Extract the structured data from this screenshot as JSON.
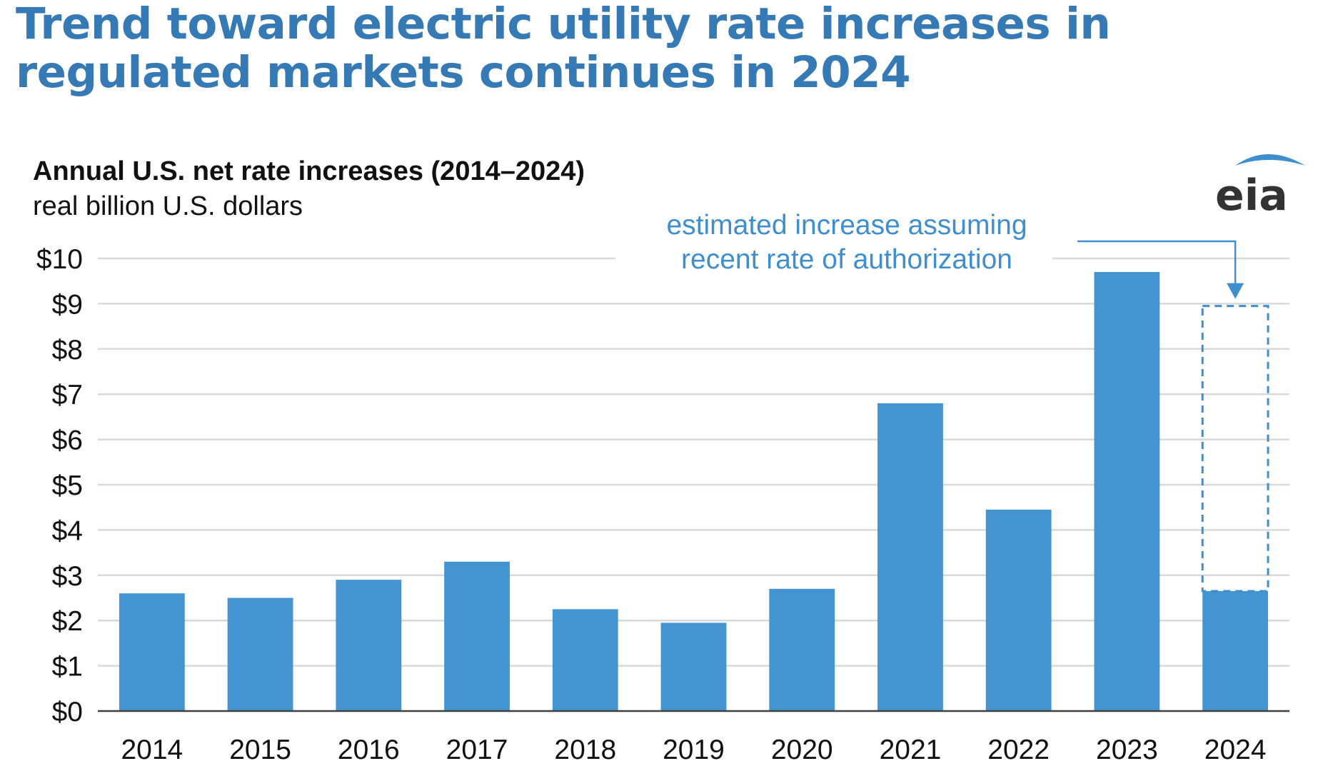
{
  "headline": "Trend toward electric utility rate increases in regulated markets continues in 2024",
  "logo_text": "eia",
  "colors": {
    "headline": "#3579b5",
    "bar": "#4394d1",
    "grid": "#d9d9d9",
    "axis": "#404040",
    "annotation": "#3f8fcf"
  },
  "chart_data": {
    "type": "bar",
    "title": "Annual U.S. net rate increases (2014–2024)",
    "subtitle": "real billion U.S. dollars",
    "xlabel": "",
    "ylabel": "",
    "ylim": [
      0,
      10
    ],
    "grid": true,
    "legend": "none",
    "y_ticks": [
      {
        "value": 0,
        "label": "$0"
      },
      {
        "value": 1,
        "label": "$1"
      },
      {
        "value": 2,
        "label": "$2"
      },
      {
        "value": 3,
        "label": "$3"
      },
      {
        "value": 4,
        "label": "$4"
      },
      {
        "value": 5,
        "label": "$5"
      },
      {
        "value": 6,
        "label": "$6"
      },
      {
        "value": 7,
        "label": "$7"
      },
      {
        "value": 8,
        "label": "$8"
      },
      {
        "value": 9,
        "label": "$9"
      },
      {
        "value": 10,
        "label": "$10"
      }
    ],
    "categories": [
      "2014",
      "2015",
      "2016",
      "2017",
      "2018",
      "2019",
      "2020",
      "2021",
      "2022",
      "2023",
      "2024"
    ],
    "values": [
      2.6,
      2.5,
      2.9,
      3.3,
      2.25,
      1.95,
      2.7,
      6.8,
      4.45,
      9.7,
      2.65
    ],
    "estimate": {
      "category": "2024",
      "value": 8.95,
      "label_lines": [
        "estimated increase assuming",
        "recent rate of authorization"
      ]
    }
  }
}
